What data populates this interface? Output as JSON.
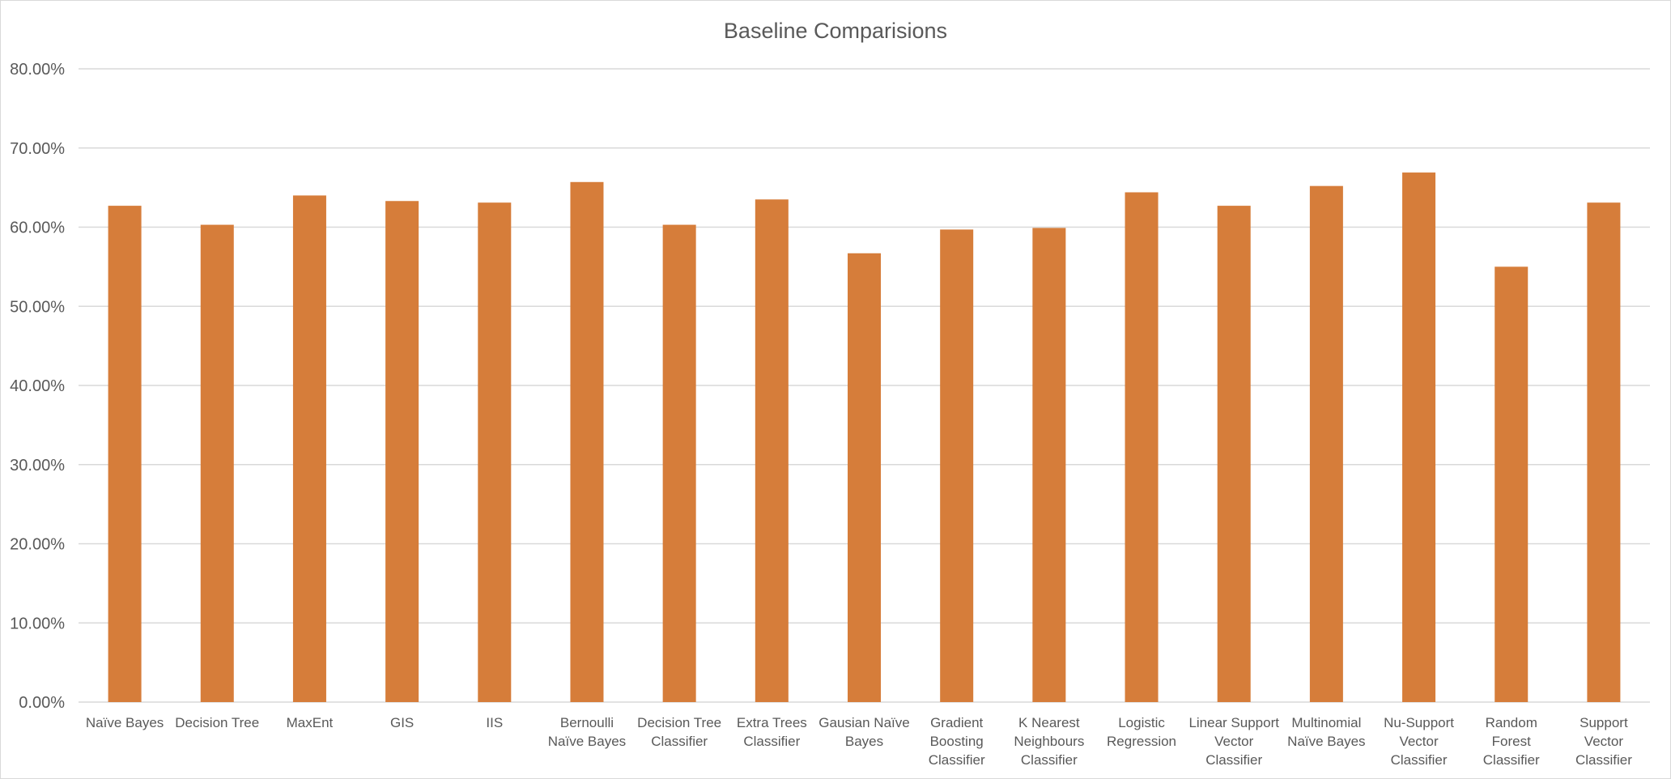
{
  "chart_data": {
    "type": "bar",
    "title": "Baseline Comparisions",
    "xlabel": "",
    "ylabel": "",
    "ylim": [
      0,
      0.8
    ],
    "y_tick_step": 0.1,
    "y_tick_labels": [
      "0.00%",
      "10.00%",
      "20.00%",
      "30.00%",
      "40.00%",
      "50.00%",
      "60.00%",
      "70.00%",
      "80.00%"
    ],
    "grid": true,
    "legend": "none",
    "bar_color": "#D67D3A",
    "categories": [
      "Naïve Bayes",
      "Decision Tree",
      "MaxEnt",
      "GIS",
      "IIS",
      "Bernoulli Naïve Bayes",
      "Decision Tree Classifier",
      "Extra Trees Classifier",
      "Gausian Naïve Bayes",
      "Gradient Boosting Classifier",
      "K Nearest Neighbours Classifier",
      "Logistic Regression",
      "Linear Support Vector Classifier",
      "Multinomial Naïve Bayes",
      "Nu-Support Vector Classifier",
      "Random Forest Classifier",
      "Support Vector Classifier"
    ],
    "category_label_lines": [
      [
        "Naïve Bayes"
      ],
      [
        "Decision Tree"
      ],
      [
        "MaxEnt"
      ],
      [
        "GIS"
      ],
      [
        "IIS"
      ],
      [
        "Bernoulli",
        "Naïve Bayes"
      ],
      [
        "Decision Tree",
        "Classifier"
      ],
      [
        "Extra Trees",
        "Classifier"
      ],
      [
        "Gausian Naïve",
        "Bayes"
      ],
      [
        "Gradient",
        "Boosting",
        "Classifier"
      ],
      [
        "K Nearest",
        "Neighbours",
        "Classifier"
      ],
      [
        "Logistic",
        "Regression"
      ],
      [
        "Linear Support",
        "Vector",
        "Classifier"
      ],
      [
        "Multinomial",
        "Naïve Bayes"
      ],
      [
        "Nu-Support",
        "Vector",
        "Classifier"
      ],
      [
        "Random",
        "Forest",
        "Classifier"
      ],
      [
        "Support",
        "Vector",
        "Classifier"
      ]
    ],
    "values": [
      0.627,
      0.603,
      0.64,
      0.633,
      0.631,
      0.657,
      0.603,
      0.635,
      0.567,
      0.597,
      0.599,
      0.644,
      0.627,
      0.652,
      0.669,
      0.55,
      0.631
    ]
  }
}
